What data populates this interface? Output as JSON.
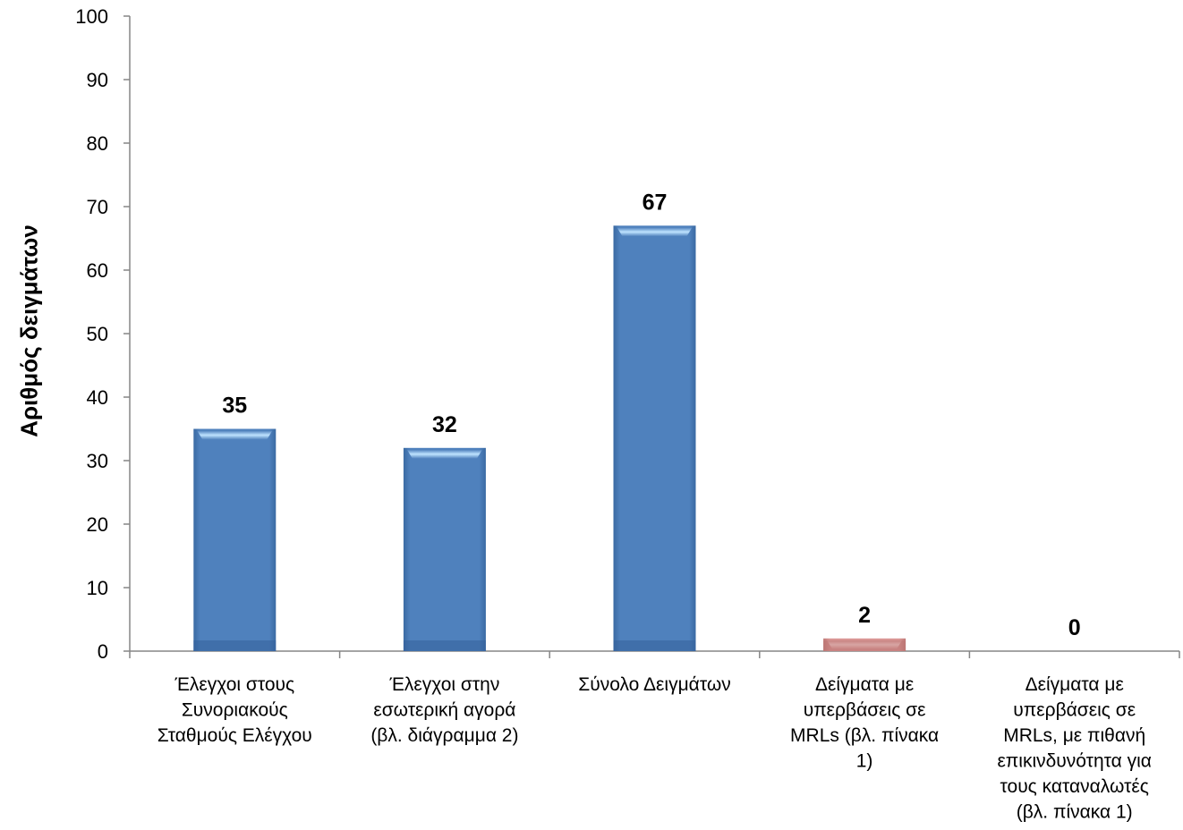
{
  "chart_data": {
    "type": "bar",
    "categories": [
      "Έλεγχοι στους Συνοριακούς Σταθμούς Ελέγχου",
      "Έλεγχοι στην εσωτερική αγορά (βλ. διάγραμμα 2)",
      "Σύνολο Δειγμάτων",
      "Δείγματα με υπερβάσεις σε MRLs (βλ. πίνακα 1)",
      "Δείγματα με υπερβάσεις σε MRLs, με πιθανή επικινδυνότητα για τους καταναλωτές (βλ. πίνακα 1)"
    ],
    "category_lines": [
      [
        "Έλεγχοι στους",
        "Συνοριακούς",
        "Σταθμούς Ελέγχου"
      ],
      [
        "Έλεγχοι στην",
        "εσωτερική αγορά",
        "(βλ. διάγραμμα 2)"
      ],
      [
        "Σύνολο Δειγμάτων"
      ],
      [
        "Δείγματα με",
        "υπερβάσεις σε",
        "MRLs (βλ. πίνακα",
        "1)"
      ],
      [
        "Δείγματα με",
        "υπερβάσεις σε",
        "MRLs, με πιθανή",
        "επικινδυνότητα για",
        "τους καταναλωτές",
        "(βλ. πίνακα 1)"
      ]
    ],
    "values": [
      35,
      32,
      67,
      2,
      0
    ],
    "data_labels": [
      "35",
      "32",
      "67",
      "2",
      "0"
    ],
    "bar_colors": [
      "#4f81bd",
      "#4f81bd",
      "#4f81bd",
      "#d99694",
      "#d99694"
    ],
    "ylabel": "Αριθμός δειγμάτων",
    "xlabel": "",
    "ylim": [
      0,
      100
    ],
    "yticks": [
      0,
      10,
      20,
      30,
      40,
      50,
      60,
      70,
      80,
      90,
      100
    ],
    "grid": false,
    "legend": "none"
  }
}
